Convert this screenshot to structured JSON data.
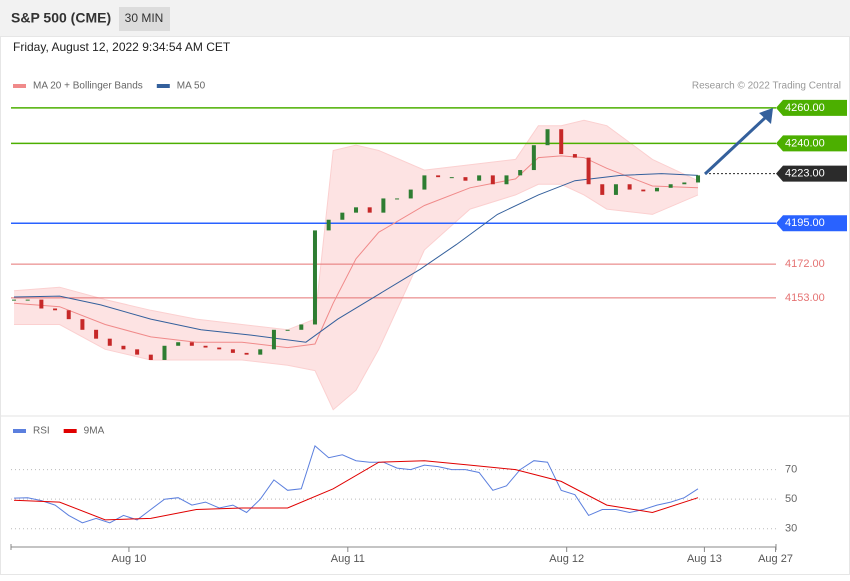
{
  "header": {
    "symbol": "S&P 500 (CME)",
    "interval": "30 MIN",
    "date": "Friday, August 12, 2022 9:34:54 AM CET",
    "credit": "Research © 2022 Trading Central"
  },
  "chart_data": [
    {
      "type": "candlestick",
      "x": [
        0,
        3,
        6,
        9,
        12,
        15,
        18,
        21,
        24,
        27,
        30,
        33,
        36,
        39,
        42,
        45,
        48,
        51,
        54,
        57,
        60,
        63,
        66,
        69,
        72,
        75,
        78,
        81,
        84,
        87,
        90,
        93,
        96,
        99,
        102,
        105,
        108,
        111,
        114,
        117,
        120,
        123,
        126,
        129,
        132,
        135,
        138,
        141,
        144,
        147,
        150
      ],
      "values": [
        4152,
        4152,
        4147,
        4146,
        4141,
        4135,
        4130,
        4126,
        4124,
        4121,
        4118,
        4126,
        4128,
        4126,
        4125,
        4124,
        4122,
        4121,
        4124,
        4135,
        4135,
        4138,
        4191,
        4197,
        4201,
        4204,
        4201,
        4209,
        4209,
        4214,
        4222,
        4221,
        4221,
        4219,
        4222,
        4217,
        4222,
        4225,
        4239,
        4248,
        4234,
        4232,
        4217,
        4211,
        4217,
        4214,
        4213,
        4215,
        4217,
        4218,
        4222
      ],
      "up_color": "#2e7d32",
      "down_color": "#c62828",
      "series": [
        {
          "name": "MA 20 + Bollinger Bands",
          "color": "#f08a8a",
          "x": [
            0,
            10,
            20,
            30,
            40,
            50,
            60,
            66,
            70,
            75,
            80,
            90,
            100,
            110,
            115,
            120,
            125,
            130,
            140,
            150
          ],
          "values": [
            4150,
            4148,
            4138,
            4131,
            4128,
            4128,
            4125,
            4127,
            4150,
            4175,
            4190,
            4205,
            4215,
            4220,
            4232,
            4233,
            4232,
            4226,
            4216,
            4215
          ],
          "upper": [
            4157,
            4159,
            4152,
            4146,
            4141,
            4138,
            4135,
            4141,
            4236,
            4239,
            4236,
            4225,
            4228,
            4231,
            4250,
            4250,
            4253,
            4250,
            4231,
            4219
          ],
          "lower": [
            4138,
            4138,
            4124,
            4118,
            4118,
            4118,
            4115,
            4112,
            4090,
            4101,
            4124,
            4180,
            4203,
            4211,
            4217,
            4217,
            4211,
            4203,
            4200,
            4211
          ]
        },
        {
          "name": "MA 50",
          "color": "#34609c",
          "x": [
            0,
            10,
            19,
            30,
            41,
            52,
            64,
            71,
            80,
            89,
            97,
            106,
            115,
            123,
            133,
            142,
            150
          ],
          "values": [
            4153.5,
            4154,
            4149,
            4141,
            4135,
            4132,
            4128,
            4141,
            4155,
            4169,
            4183,
            4200,
            4211,
            4219,
            4222,
            4223,
            4222
          ]
        }
      ],
      "levels": [
        {
          "value": 4260,
          "label": "4260.00",
          "color": "#4caf00"
        },
        {
          "value": 4240,
          "label": "4240.00",
          "color": "#4caf00"
        },
        {
          "value": 4223,
          "label": "4223.00",
          "color": "#2b2b2b"
        },
        {
          "value": 4195,
          "label": "4195.00",
          "color": "#2962ff"
        },
        {
          "value": 4172,
          "label": "4172.00",
          "color": "#e57373"
        },
        {
          "value": 4153,
          "label": "4153.00",
          "color": "#e57373"
        }
      ],
      "xlim": [
        -0.66,
        167.1
      ],
      "ylim": [
        4087,
        4287
      ]
    },
    {
      "type": "line",
      "x": [
        0,
        3,
        6,
        9,
        12,
        15,
        18,
        21,
        24,
        27,
        30,
        33,
        36,
        39,
        42,
        45,
        48,
        51,
        54,
        57,
        60,
        63,
        66,
        69,
        72,
        75,
        78,
        81,
        84,
        87,
        90,
        93,
        96,
        99,
        102,
        105,
        108,
        111,
        114,
        117,
        120,
        123,
        126,
        129,
        132,
        135,
        138,
        141,
        144,
        147,
        150
      ],
      "series": [
        {
          "name": "RSI",
          "color": "#5b7fde",
          "x": [
            0,
            3,
            6,
            9,
            12,
            15,
            18,
            21,
            24,
            27,
            30,
            33,
            36,
            39,
            42,
            45,
            48,
            51,
            54,
            57,
            60,
            63,
            66,
            69,
            72,
            75,
            78,
            81,
            84,
            87,
            90,
            93,
            96,
            99,
            102,
            105,
            108,
            111,
            114,
            117,
            120,
            123,
            126,
            129,
            132,
            135,
            138,
            141,
            144,
            147,
            150
          ],
          "values": [
            50.7,
            51,
            49,
            46,
            39,
            34,
            37,
            34,
            39,
            36,
            43,
            50,
            51,
            46,
            48,
            44,
            46,
            41,
            50,
            63,
            56,
            57,
            86,
            78,
            80,
            76,
            75,
            75,
            71,
            70,
            73,
            72,
            70,
            70,
            68,
            56,
            59,
            70,
            76,
            75,
            56,
            53,
            39,
            43,
            43,
            41,
            43,
            46,
            48,
            51,
            57
          ]
        },
        {
          "name": "9MA",
          "color": "#e00000",
          "x": [
            0,
            10,
            20,
            30,
            40,
            50,
            60,
            70,
            80,
            90,
            100,
            110,
            120,
            130,
            140,
            150
          ],
          "values": [
            49.3,
            48,
            36,
            37,
            43,
            44,
            44,
            57,
            75,
            76,
            73,
            70,
            62,
            46,
            41,
            51
          ]
        }
      ],
      "xticks": [
        {
          "value": 25.2,
          "label": "Aug 10"
        },
        {
          "value": 73.2,
          "label": "Aug 11"
        },
        {
          "value": 121.2,
          "label": "Aug 12"
        },
        {
          "value": 151.4,
          "label": "Aug 13"
        },
        {
          "value": 167,
          "label": "Aug 27"
        }
      ],
      "yticks": [
        30,
        50,
        70
      ],
      "xlim": [
        -0.66,
        167.1
      ],
      "ylim": [
        19,
        90
      ]
    }
  ]
}
